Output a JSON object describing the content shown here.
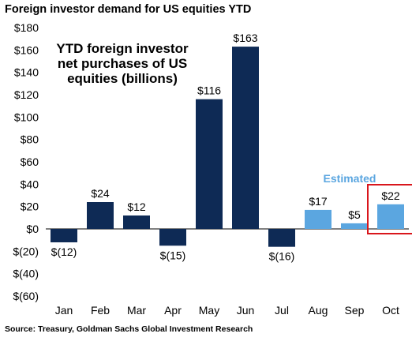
{
  "header": {
    "title": "Foreign investor demand for US equities YTD"
  },
  "footer": {
    "source": "Source: Treasury, Goldman Sachs Global Investment Research"
  },
  "colors": {
    "actual": "#0e2a55",
    "estimated": "#5ba6e0",
    "estimated_label": "#5ba6e0",
    "highlight_box": "#d9161c"
  },
  "chart_data": {
    "type": "bar",
    "title": "YTD foreign investor net purchases of US equities (billions)",
    "title_lines": [
      "YTD foreign investor",
      "net purchases of US",
      "equities (billions)"
    ],
    "categories": [
      "Jan",
      "Feb",
      "Mar",
      "Apr",
      "May",
      "Jun",
      "Jul",
      "Aug",
      "Sep",
      "Oct"
    ],
    "values": [
      -12,
      24,
      12,
      -15,
      116,
      163,
      -16,
      17,
      5,
      22
    ],
    "data_labels": [
      "$(12)",
      "$24",
      "$12",
      "$(15)",
      "$116",
      "$163",
      "$(16)",
      "$17",
      "$5",
      "$22"
    ],
    "estimated": [
      false,
      false,
      false,
      false,
      false,
      false,
      false,
      true,
      true,
      true
    ],
    "estimated_label": "Estimated",
    "highlighted_category": "Oct",
    "ylim": [
      -60,
      180
    ],
    "yticks": [
      180,
      160,
      140,
      120,
      100,
      80,
      60,
      40,
      20,
      0,
      -20,
      -40,
      -60
    ],
    "ytick_labels": [
      "$180",
      "$160",
      "$140",
      "$120",
      "$100",
      "$80",
      "$60",
      "$40",
      "$20",
      "$0",
      "$(20)",
      "$(40)",
      "$(60)"
    ],
    "xlabel": "",
    "ylabel": "",
    "grid": false
  }
}
